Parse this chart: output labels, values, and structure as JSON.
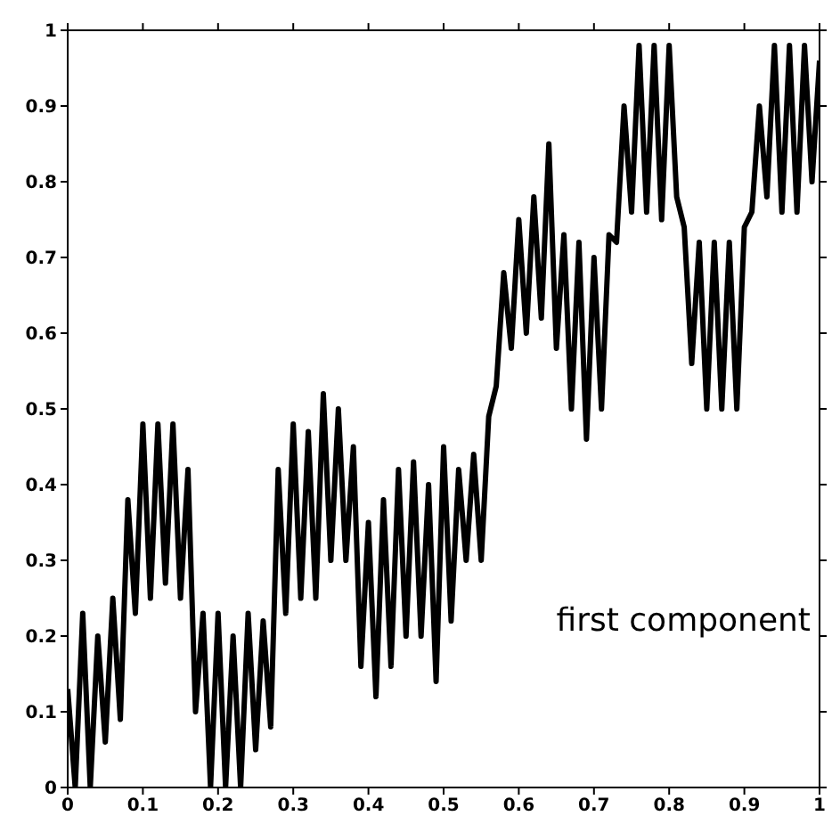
{
  "chart_data": {
    "type": "line",
    "x": [
      0,
      0.01,
      0.02,
      0.03,
      0.04,
      0.05,
      0.06,
      0.07,
      0.08,
      0.09,
      0.1,
      0.11,
      0.12,
      0.13,
      0.14,
      0.15,
      0.16,
      0.17,
      0.18,
      0.19,
      0.2,
      0.21,
      0.22,
      0.23,
      0.24,
      0.25,
      0.26,
      0.27,
      0.28,
      0.29,
      0.3,
      0.31,
      0.32,
      0.33,
      0.34,
      0.35,
      0.36,
      0.37,
      0.38,
      0.39,
      0.4,
      0.41,
      0.42,
      0.43,
      0.44,
      0.45,
      0.46,
      0.47,
      0.48,
      0.49,
      0.5,
      0.51,
      0.52,
      0.53,
      0.54,
      0.55,
      0.56,
      0.57,
      0.58,
      0.59,
      0.6,
      0.61,
      0.62,
      0.63,
      0.64,
      0.65,
      0.66,
      0.67,
      0.68,
      0.69,
      0.7,
      0.71,
      0.72,
      0.73,
      0.74,
      0.75,
      0.76,
      0.77,
      0.78,
      0.79,
      0.8,
      0.81,
      0.82,
      0.83,
      0.84,
      0.85,
      0.86,
      0.87,
      0.88,
      0.89,
      0.9,
      0.91,
      0.92,
      0.93,
      0.94,
      0.95,
      0.96,
      0.97,
      0.98,
      0.99,
      1
    ],
    "series": [
      {
        "color": "#000000",
        "values": [
          0.13,
          0.0,
          0.23,
          0.0,
          0.2,
          0.06,
          0.25,
          0.09,
          0.38,
          0.23,
          0.48,
          0.25,
          0.48,
          0.27,
          0.48,
          0.25,
          0.42,
          0.1,
          0.23,
          0.0,
          0.23,
          0.0,
          0.2,
          0.0,
          0.23,
          0.05,
          0.22,
          0.08,
          0.42,
          0.23,
          0.48,
          0.25,
          0.47,
          0.25,
          0.52,
          0.3,
          0.5,
          0.3,
          0.45,
          0.16,
          0.35,
          0.12,
          0.38,
          0.16,
          0.42,
          0.2,
          0.43,
          0.2,
          0.4,
          0.14,
          0.45,
          0.22,
          0.42,
          0.3,
          0.44,
          0.3,
          0.49,
          0.53,
          0.68,
          0.58,
          0.75,
          0.6,
          0.78,
          0.62,
          0.85,
          0.58,
          0.73,
          0.5,
          0.72,
          0.46,
          0.7,
          0.5,
          0.73,
          0.72,
          0.9,
          0.76,
          0.98,
          0.76,
          0.98,
          0.75,
          0.98,
          0.78,
          0.74,
          0.56,
          0.72,
          0.5,
          0.72,
          0.5,
          0.72,
          0.5,
          0.74,
          0.76,
          0.9,
          0.78,
          0.98,
          0.76,
          0.98,
          0.76,
          0.98,
          0.8,
          0.96
        ]
      }
    ],
    "xlim": [
      0,
      1
    ],
    "ylim": [
      0,
      1
    ],
    "xticks": [
      0,
      0.1,
      0.2,
      0.3,
      0.4,
      0.5,
      0.6,
      0.7,
      0.8,
      0.9,
      1
    ],
    "yticks": [
      0,
      0.1,
      0.2,
      0.3,
      0.4,
      0.5,
      0.6,
      0.7,
      0.8,
      0.9,
      1
    ],
    "annotations": [
      "first component"
    ],
    "grid": false,
    "legend": false,
    "marker": "none",
    "line_style": "solid"
  }
}
